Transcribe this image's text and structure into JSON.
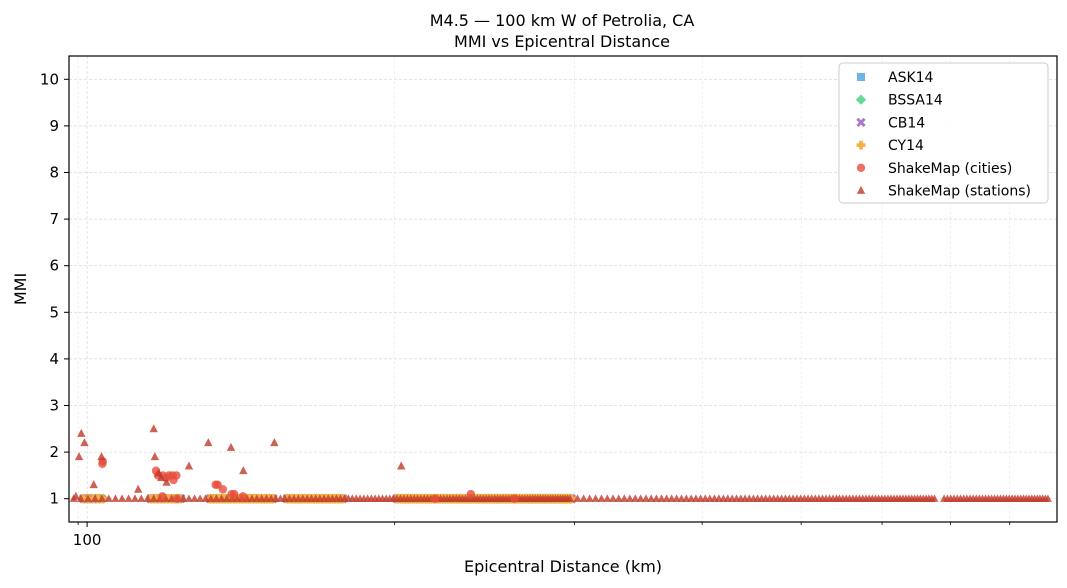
{
  "chart_data": {
    "type": "scatter",
    "title": "M4.5 — 100 km W of Petrolia, CA",
    "subtitle": "MMI vs Epicentral Distance",
    "xlabel": "Epicentral Distance (km)",
    "ylabel": "MMI",
    "xscale": "log",
    "xlim": [
      96,
      890
    ],
    "ylim": [
      0.5,
      10.5
    ],
    "x_major_ticks": [
      100
    ],
    "x_major_tick_labels": [
      "100"
    ],
    "x_minor_ticks": [
      98,
      200,
      300,
      400,
      500,
      600,
      700,
      800
    ],
    "y_ticks": [
      1,
      2,
      3,
      4,
      5,
      6,
      7,
      8,
      9,
      10
    ],
    "y_tick_labels": [
      "1",
      "2",
      "3",
      "4",
      "5",
      "6",
      "7",
      "8",
      "9",
      "10"
    ],
    "grid": true,
    "legend_position": "top-right",
    "series": [
      {
        "name": "ASK14",
        "marker": "square",
        "color": "#5dade2",
        "x_segments": [
          [
            99.2,
            103.8
          ],
          [
            115.5,
            124.2
          ],
          [
            132,
            152
          ],
          [
            157,
            178
          ],
          [
            201,
            298
          ]
        ],
        "step_km": 0.8,
        "y": 1.0
      },
      {
        "name": "BSSA14",
        "marker": "diamond",
        "color": "#58d68d",
        "x_segments": [
          [
            99.3,
            103.8
          ],
          [
            115.5,
            124.2
          ],
          [
            132,
            152
          ],
          [
            157,
            178
          ],
          [
            201,
            298
          ]
        ],
        "step_km": 0.9,
        "y": 1.0
      },
      {
        "name": "CB14",
        "marker": "x",
        "color": "#af7ac5",
        "x_segments": [
          [
            99.2,
            103.8
          ],
          [
            115.5,
            124.2
          ],
          [
            132,
            152
          ],
          [
            157,
            178
          ],
          [
            201,
            298
          ]
        ],
        "step_km": 1.0,
        "y": 1.0
      },
      {
        "name": "CY14",
        "marker": "plus",
        "color": "#f5b041",
        "x_segments": [
          [
            99.2,
            103.8
          ],
          [
            115.5,
            124.2
          ],
          [
            132,
            152
          ],
          [
            157,
            178
          ],
          [
            201,
            298
          ]
        ],
        "step_km": 1.1,
        "y": 1.0
      },
      {
        "name": "ShakeMap (cities)",
        "marker": "circle",
        "color": "#e74c3c",
        "points": [
          [
            103.5,
            1.75
          ],
          [
            103.6,
            1.8
          ],
          [
            116.8,
            1.6
          ],
          [
            117.3,
            1.5
          ],
          [
            118.6,
            1.5
          ],
          [
            119.5,
            1.45
          ],
          [
            120.3,
            1.5
          ],
          [
            121.2,
            1.5
          ],
          [
            122.3,
            1.5
          ],
          [
            121.5,
            1.4
          ],
          [
            133.6,
            1.3
          ],
          [
            134.2,
            1.3
          ],
          [
            135.8,
            1.2
          ],
          [
            138.5,
            1.1
          ],
          [
            139.3,
            1.1
          ],
          [
            142.1,
            1.05
          ],
          [
            118.5,
            1.05
          ],
          [
            122.5,
            1.0
          ],
          [
            237.5,
            1.1
          ],
          [
            262,
            1.0
          ],
          [
            219,
            1.0
          ]
        ]
      },
      {
        "name": "ShakeMap (stations)",
        "marker": "triangle",
        "color": "#c0392b",
        "points": [
          [
            97.5,
            1.05
          ],
          [
            98.2,
            1.9
          ],
          [
            98.7,
            2.4
          ],
          [
            99.4,
            2.2
          ],
          [
            101.5,
            1.3
          ],
          [
            103.3,
            1.9
          ],
          [
            112.2,
            1.2
          ],
          [
            116.5,
            1.9
          ],
          [
            116.2,
            2.5
          ],
          [
            117.5,
            1.55
          ],
          [
            118.2,
            1.45
          ],
          [
            119.6,
            1.35
          ],
          [
            125.8,
            1.7
          ],
          [
            131.4,
            2.2
          ],
          [
            138.3,
            2.1
          ],
          [
            142.2,
            1.6
          ],
          [
            152.5,
            2.2
          ],
          [
            203,
            1.7
          ]
        ],
        "dense_x_segments": [
          [
            97,
            298
          ],
          [
            302,
            545
          ],
          [
            545,
            678
          ],
          [
            690,
            874
          ]
        ],
        "y": 1.0
      }
    ]
  }
}
